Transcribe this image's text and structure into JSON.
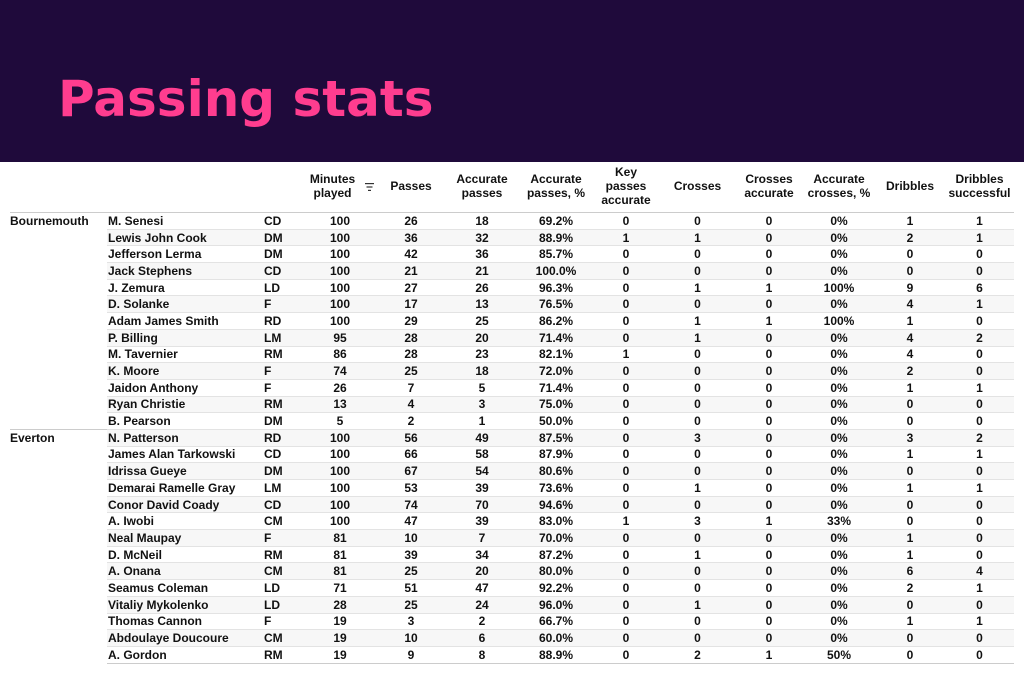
{
  "title": "Passing stats",
  "columns": {
    "minutes": "Minutes played",
    "passes": "Passes",
    "accurate_passes": "Accurate passes",
    "accurate_passes_pct": "Accurate passes, %",
    "key_passes": "Key passes accurate",
    "crosses": "Crosses",
    "crosses_accurate": "Crosses accurate",
    "accurate_crosses_pct": "Accurate crosses, %",
    "dribbles": "Dribbles",
    "dribbles_successful": "Dribbles successful"
  },
  "rows": [
    {
      "team": "Bournemouth",
      "player": "M. Senesi",
      "pos": "CD",
      "v": [
        "100",
        "26",
        "18",
        "69.2%",
        "0",
        "0",
        "0",
        "0%",
        "1",
        "1"
      ]
    },
    {
      "team": "",
      "player": "Lewis John Cook",
      "pos": "DM",
      "v": [
        "100",
        "36",
        "32",
        "88.9%",
        "1",
        "1",
        "0",
        "0%",
        "2",
        "1"
      ]
    },
    {
      "team": "",
      "player": "Jefferson Lerma",
      "pos": "DM",
      "v": [
        "100",
        "42",
        "36",
        "85.7%",
        "0",
        "0",
        "0",
        "0%",
        "0",
        "0"
      ]
    },
    {
      "team": "",
      "player": "Jack Stephens",
      "pos": "CD",
      "v": [
        "100",
        "21",
        "21",
        "100.0%",
        "0",
        "0",
        "0",
        "0%",
        "0",
        "0"
      ]
    },
    {
      "team": "",
      "player": "J. Zemura",
      "pos": "LD",
      "v": [
        "100",
        "27",
        "26",
        "96.3%",
        "0",
        "1",
        "1",
        "100%",
        "9",
        "6"
      ]
    },
    {
      "team": "",
      "player": "D. Solanke",
      "pos": "F",
      "v": [
        "100",
        "17",
        "13",
        "76.5%",
        "0",
        "0",
        "0",
        "0%",
        "4",
        "1"
      ]
    },
    {
      "team": "",
      "player": "Adam James Smith",
      "pos": "RD",
      "v": [
        "100",
        "29",
        "25",
        "86.2%",
        "0",
        "1",
        "1",
        "100%",
        "1",
        "0"
      ]
    },
    {
      "team": "",
      "player": "P. Billing",
      "pos": "LM",
      "v": [
        "95",
        "28",
        "20",
        "71.4%",
        "0",
        "1",
        "0",
        "0%",
        "4",
        "2"
      ]
    },
    {
      "team": "",
      "player": "M. Tavernier",
      "pos": "RM",
      "v": [
        "86",
        "28",
        "23",
        "82.1%",
        "1",
        "0",
        "0",
        "0%",
        "4",
        "0"
      ]
    },
    {
      "team": "",
      "player": "K. Moore",
      "pos": "F",
      "v": [
        "74",
        "25",
        "18",
        "72.0%",
        "0",
        "0",
        "0",
        "0%",
        "2",
        "0"
      ]
    },
    {
      "team": "",
      "player": "Jaidon Anthony",
      "pos": "F",
      "v": [
        "26",
        "7",
        "5",
        "71.4%",
        "0",
        "0",
        "0",
        "0%",
        "1",
        "1"
      ]
    },
    {
      "team": "",
      "player": "Ryan Christie",
      "pos": "RM",
      "v": [
        "13",
        "4",
        "3",
        "75.0%",
        "0",
        "0",
        "0",
        "0%",
        "0",
        "0"
      ]
    },
    {
      "team": "",
      "player": "B. Pearson",
      "pos": "DM",
      "v": [
        "5",
        "2",
        "1",
        "50.0%",
        "0",
        "0",
        "0",
        "0%",
        "0",
        "0"
      ]
    },
    {
      "team": "Everton",
      "player": "N. Patterson",
      "pos": "RD",
      "v": [
        "100",
        "56",
        "49",
        "87.5%",
        "0",
        "3",
        "0",
        "0%",
        "3",
        "2"
      ]
    },
    {
      "team": "",
      "player": "James Alan Tarkowski",
      "pos": "CD",
      "v": [
        "100",
        "66",
        "58",
        "87.9%",
        "0",
        "0",
        "0",
        "0%",
        "1",
        "1"
      ]
    },
    {
      "team": "",
      "player": "Idrissa Gueye",
      "pos": "DM",
      "v": [
        "100",
        "67",
        "54",
        "80.6%",
        "0",
        "0",
        "0",
        "0%",
        "0",
        "0"
      ]
    },
    {
      "team": "",
      "player": "Demarai Ramelle Gray",
      "pos": "LM",
      "v": [
        "100",
        "53",
        "39",
        "73.6%",
        "0",
        "1",
        "0",
        "0%",
        "1",
        "1"
      ]
    },
    {
      "team": "",
      "player": "Conor David Coady",
      "pos": "CD",
      "v": [
        "100",
        "74",
        "70",
        "94.6%",
        "0",
        "0",
        "0",
        "0%",
        "0",
        "0"
      ]
    },
    {
      "team": "",
      "player": "A. Iwobi",
      "pos": "CM",
      "v": [
        "100",
        "47",
        "39",
        "83.0%",
        "1",
        "3",
        "1",
        "33%",
        "0",
        "0"
      ]
    },
    {
      "team": "",
      "player": "Neal Maupay",
      "pos": "F",
      "v": [
        "81",
        "10",
        "7",
        "70.0%",
        "0",
        "0",
        "0",
        "0%",
        "1",
        "0"
      ]
    },
    {
      "team": "",
      "player": "D. McNeil",
      "pos": "RM",
      "v": [
        "81",
        "39",
        "34",
        "87.2%",
        "0",
        "1",
        "0",
        "0%",
        "1",
        "0"
      ]
    },
    {
      "team": "",
      "player": "A. Onana",
      "pos": "CM",
      "v": [
        "81",
        "25",
        "20",
        "80.0%",
        "0",
        "0",
        "0",
        "0%",
        "6",
        "4"
      ]
    },
    {
      "team": "",
      "player": "Seamus Coleman",
      "pos": "LD",
      "v": [
        "71",
        "51",
        "47",
        "92.2%",
        "0",
        "0",
        "0",
        "0%",
        "2",
        "1"
      ]
    },
    {
      "team": "",
      "player": "Vitaliy Mykolenko",
      "pos": "LD",
      "v": [
        "28",
        "25",
        "24",
        "96.0%",
        "0",
        "1",
        "0",
        "0%",
        "0",
        "0"
      ]
    },
    {
      "team": "",
      "player": "Thomas Cannon",
      "pos": "F",
      "v": [
        "19",
        "3",
        "2",
        "66.7%",
        "0",
        "0",
        "0",
        "0%",
        "1",
        "1"
      ]
    },
    {
      "team": "",
      "player": "Abdoulaye Doucoure",
      "pos": "CM",
      "v": [
        "19",
        "10",
        "6",
        "60.0%",
        "0",
        "0",
        "0",
        "0%",
        "0",
        "0"
      ]
    },
    {
      "team": "",
      "player": "A. Gordon",
      "pos": "RM",
      "v": [
        "19",
        "9",
        "8",
        "88.9%",
        "0",
        "2",
        "1",
        "50%",
        "0",
        "0"
      ]
    }
  ],
  "icons": {
    "sort": "sort-icon"
  },
  "colors": {
    "header_bg": "#1f0a3b",
    "title": "#ff3d8f"
  }
}
